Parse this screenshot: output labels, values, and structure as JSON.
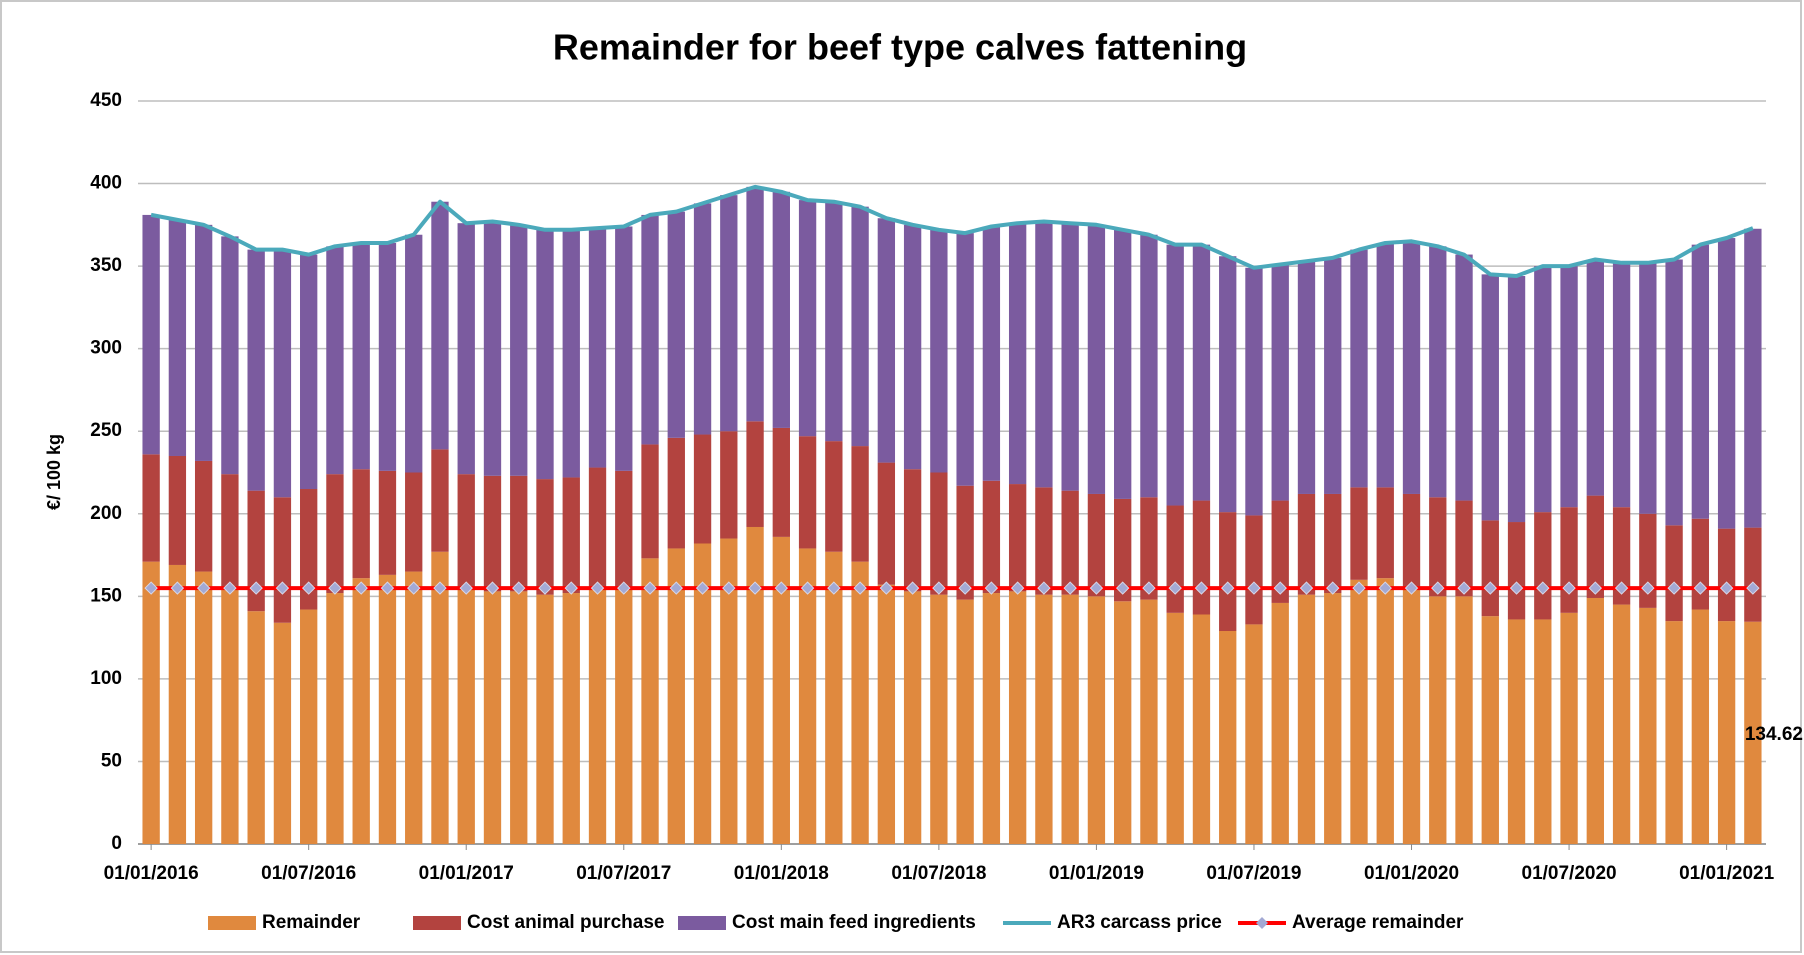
{
  "chart_data": {
    "type": "bar",
    "stacked": true,
    "title": "Remainder for beef type calves fattening",
    "y_label": "€/ 100 kg",
    "categories": [
      "01/01/2016",
      null,
      null,
      null,
      null,
      null,
      "01/07/2016",
      null,
      null,
      null,
      null,
      null,
      "01/01/2017",
      null,
      null,
      null,
      null,
      null,
      "01/07/2017",
      null,
      null,
      null,
      null,
      null,
      "01/01/2018",
      null,
      null,
      null,
      null,
      null,
      "01/07/2018",
      null,
      null,
      null,
      null,
      null,
      "01/01/2019",
      null,
      null,
      null,
      null,
      null,
      "01/07/2019",
      null,
      null,
      null,
      null,
      null,
      "01/01/2020",
      null,
      null,
      null,
      null,
      null,
      "01/07/2020",
      null,
      null,
      null,
      null,
      null,
      "01/01/2021",
      null
    ],
    "series": [
      {
        "name": "Remainder",
        "type": "bar",
        "color": "#e0893e",
        "values": [
          171,
          169,
          165,
          155,
          141,
          134,
          142,
          152,
          161,
          163,
          165,
          177,
          155,
          153,
          153,
          151,
          152,
          155,
          155,
          173,
          179,
          182,
          185,
          192,
          186,
          179,
          177,
          171,
          157,
          153,
          151,
          148,
          152,
          153,
          151,
          151,
          150,
          147,
          148,
          140,
          139,
          129,
          133,
          146,
          151,
          152,
          160,
          161,
          156,
          150,
          150,
          138,
          136,
          136,
          140,
          149,
          145,
          143,
          135,
          142,
          135,
          134.62
        ],
        "value_labels": [
          null,
          null,
          null,
          null,
          null,
          null,
          null,
          null,
          null,
          null,
          null,
          null,
          null,
          null,
          null,
          null,
          null,
          null,
          null,
          null,
          null,
          null,
          null,
          null,
          null,
          null,
          null,
          null,
          null,
          null,
          null,
          null,
          null,
          null,
          null,
          null,
          null,
          null,
          null,
          null,
          null,
          null,
          null,
          null,
          null,
          null,
          null,
          null,
          null,
          null,
          null,
          null,
          null,
          null,
          null,
          null,
          null,
          null,
          null,
          null,
          null,
          "134.62"
        ]
      },
      {
        "name": "Cost animal purchase",
        "type": "bar",
        "color": "#b3433f",
        "values": [
          65,
          66,
          67,
          69,
          73,
          76,
          73,
          72,
          66,
          63,
          60,
          62,
          69,
          70,
          70,
          70,
          70,
          73,
          71,
          69,
          67,
          66,
          65,
          64,
          66,
          68,
          67,
          70,
          74,
          74,
          74,
          69,
          68,
          65,
          65,
          63,
          62,
          62,
          62,
          65,
          69,
          72,
          66,
          62,
          61,
          60,
          56,
          55,
          56,
          60,
          58,
          58,
          59,
          65,
          64,
          62,
          59,
          57,
          58,
          55,
          56,
          57
        ]
      },
      {
        "name": "Cost main feed ingredients",
        "type": "bar",
        "color": "#7b5b9f",
        "values": [
          145,
          143,
          143,
          144,
          146,
          150,
          142,
          138,
          137,
          138,
          144,
          150,
          152,
          154,
          152,
          151,
          150,
          145,
          148,
          139,
          137,
          140,
          143,
          142,
          143,
          143,
          145,
          145,
          148,
          148,
          147,
          153,
          154,
          158,
          161,
          162,
          163,
          163,
          159,
          158,
          155,
          155,
          150,
          143,
          141,
          143,
          144,
          148,
          153,
          152,
          149,
          149,
          149,
          149,
          146,
          143,
          148,
          152,
          161,
          166,
          176,
          181
        ]
      },
      {
        "name": "AR3 carcass price",
        "type": "line",
        "color": "#4ba9bb",
        "values": [
          381,
          378,
          375,
          368,
          360,
          360,
          357,
          362,
          364,
          364,
          369,
          389,
          376,
          377,
          375,
          372,
          372,
          373,
          374,
          381,
          383,
          388,
          393,
          398,
          395,
          390,
          389,
          386,
          379,
          375,
          372,
          370,
          374,
          376,
          377,
          376,
          375,
          372,
          369,
          363,
          363,
          356,
          349,
          351,
          353,
          355,
          360,
          364,
          365,
          362,
          357,
          345,
          344,
          350,
          350,
          354,
          352,
          352,
          354,
          363,
          367,
          373
        ]
      },
      {
        "name": "Average remainder",
        "type": "line",
        "color": "#ff0000",
        "marker_color": "#a3a9d4",
        "values": [
          155,
          155,
          155,
          155,
          155,
          155,
          155,
          155,
          155,
          155,
          155,
          155,
          155,
          155,
          155,
          155,
          155,
          155,
          155,
          155,
          155,
          155,
          155,
          155,
          155,
          155,
          155,
          155,
          155,
          155,
          155,
          155,
          155,
          155,
          155,
          155,
          155,
          155,
          155,
          155,
          155,
          155,
          155,
          155,
          155,
          155,
          155,
          155,
          155,
          155,
          155,
          155,
          155,
          155,
          155,
          155,
          155,
          155,
          155,
          155,
          155,
          155
        ]
      }
    ],
    "ylim": [
      0,
      450
    ],
    "yticks": [
      0,
      50,
      100,
      150,
      200,
      250,
      300,
      350,
      400,
      450
    ],
    "grid": true,
    "legend": "bottom"
  }
}
